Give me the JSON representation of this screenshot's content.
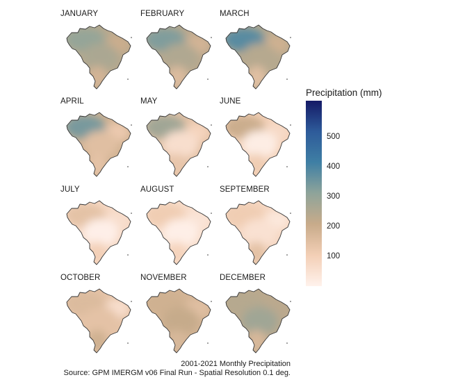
{
  "months": [
    {
      "name": "JANUARY",
      "north": 300,
      "central": 260,
      "east": 200,
      "south": 180
    },
    {
      "name": "FEBRUARY",
      "north": 330,
      "central": 250,
      "east": 180,
      "south": 160
    },
    {
      "name": "MARCH",
      "north": 380,
      "central": 240,
      "east": 190,
      "south": 150
    },
    {
      "name": "APRIL",
      "north": 340,
      "central": 150,
      "east": 120,
      "south": 140
    },
    {
      "name": "MAY",
      "north": 280,
      "central": 60,
      "east": 90,
      "south": 130
    },
    {
      "name": "JUNE",
      "north": 200,
      "central": 15,
      "east": 70,
      "south": 110
    },
    {
      "name": "JULY",
      "north": 140,
      "central": 8,
      "east": 60,
      "south": 100
    },
    {
      "name": "AUGUST",
      "north": 110,
      "central": 10,
      "east": 40,
      "south": 90
    },
    {
      "name": "SEPTEMBER",
      "north": 110,
      "central": 50,
      "east": 30,
      "south": 140
    },
    {
      "name": "OCTOBER",
      "north": 160,
      "central": 140,
      "east": 60,
      "south": 190
    },
    {
      "name": "NOVEMBER",
      "north": 190,
      "central": 210,
      "east": 150,
      "south": 170
    },
    {
      "name": "DECEMBER",
      "north": 240,
      "central": 280,
      "east": 230,
      "south": 170
    }
  ],
  "legend": {
    "title": "Precipitation (mm)",
    "min": 0,
    "max": 620,
    "ticks": [
      "100",
      "200",
      "300",
      "400",
      "500"
    ]
  },
  "caption": {
    "line1": "2001-2021 Monthly Precipitation",
    "line2": "Source: GPM IMERGM v06 Final Run - Spatial Resolution 0.1 deg."
  },
  "colors": {
    "scale": [
      "#fff2ec",
      "#f3cfb6",
      "#c8ab8a",
      "#8fa49a",
      "#3f7fa4",
      "#2e5b9a",
      "#141a66"
    ],
    "outline": "#333333"
  }
}
